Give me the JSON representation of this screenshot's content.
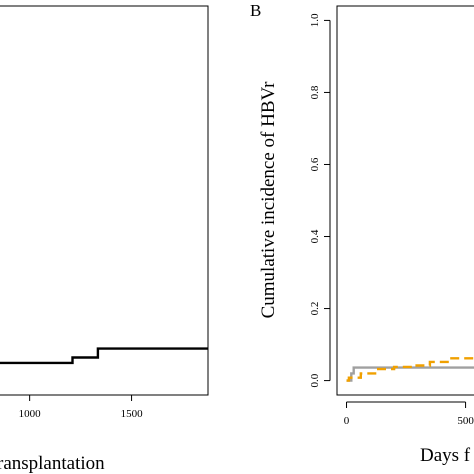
{
  "chart_data": [
    {
      "type": "line",
      "panel": "left",
      "xlabel": "ransplantation",
      "ylabel": "",
      "xticks": [
        "1000",
        "1500"
      ],
      "xlim": [
        830,
        1875
      ],
      "ylim": [
        -0.04,
        1.05
      ],
      "series": [
        {
          "color": "#000000",
          "style": "solid-step",
          "x": [
            830,
            1210,
            1210,
            1335,
            1335,
            1875
          ],
          "y": [
            0.05,
            0.05,
            0.065,
            0.065,
            0.09,
            0.09
          ]
        }
      ]
    },
    {
      "type": "line",
      "panel": "B",
      "panel_label": "B",
      "xlabel": "Days f",
      "ylabel": "Cumulative incidence of HBVr",
      "xticks": [
        "0",
        "500"
      ],
      "yticks": [
        "0.0",
        "0.2",
        "0.4",
        "0.6",
        "0.8",
        "1.0"
      ],
      "xlim": [
        -40,
        590
      ],
      "ylim": [
        -0.04,
        1.04
      ],
      "series": [
        {
          "color": "#a0a0a0",
          "style": "solid-step",
          "x": [
            0,
            20,
            20,
            30,
            30,
            590
          ],
          "y": [
            0,
            0,
            0.02,
            0.02,
            0.036,
            0.036
          ]
        },
        {
          "color": "#f0a000",
          "style": "dashed-step",
          "x": [
            0,
            10,
            10,
            60,
            60,
            120,
            120,
            200,
            200,
            280,
            280,
            350,
            350,
            430,
            430,
            590
          ],
          "y": [
            0,
            0,
            0.008,
            0.008,
            0.02,
            0.02,
            0.032,
            0.032,
            0.038,
            0.038,
            0.042,
            0.042,
            0.052,
            0.052,
            0.062,
            0.062
          ]
        }
      ]
    }
  ]
}
